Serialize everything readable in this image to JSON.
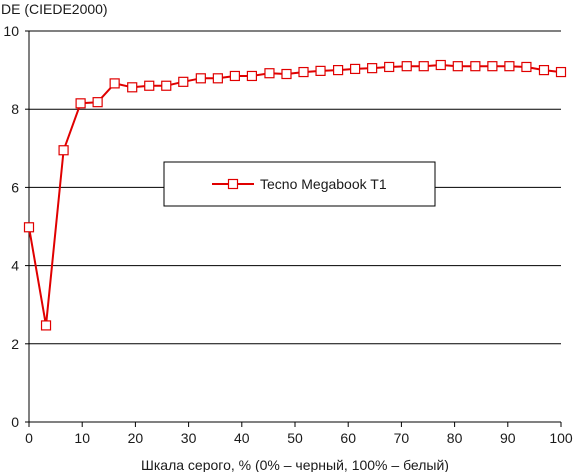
{
  "chart_data": {
    "type": "line",
    "ylabel": "DE (CIEDE2000)",
    "xlabel": "Шкала серого, % (0% – черный, 100% – белый)",
    "xlim": [
      0,
      100
    ],
    "ylim": [
      0,
      10
    ],
    "xticks": [
      "0",
      "10",
      "20",
      "30",
      "40",
      "50",
      "60",
      "70",
      "80",
      "90",
      "100"
    ],
    "yticks": [
      "0",
      "2",
      "4",
      "6",
      "8",
      "10"
    ],
    "grid": "horizontal",
    "legend_position": "center",
    "series": [
      {
        "name": "Tecno Megabook T1",
        "color": "#e00000",
        "marker": "square-hollow",
        "x": [
          0,
          3.2,
          6.5,
          9.7,
          12.9,
          16.1,
          19.4,
          22.6,
          25.8,
          29.0,
          32.3,
          35.5,
          38.7,
          41.9,
          45.2,
          48.4,
          51.6,
          54.8,
          58.1,
          61.3,
          64.5,
          67.7,
          71.0,
          74.2,
          77.4,
          80.6,
          83.9,
          87.1,
          90.3,
          93.5,
          96.8,
          100
        ],
        "y": [
          4.98,
          2.47,
          6.95,
          8.15,
          8.18,
          8.66,
          8.56,
          8.6,
          8.6,
          8.7,
          8.79,
          8.79,
          8.85,
          8.85,
          8.92,
          8.9,
          8.95,
          8.98,
          9.0,
          9.03,
          9.05,
          9.08,
          9.1,
          9.1,
          9.13,
          9.1,
          9.1,
          9.1,
          9.1,
          9.08,
          9.0,
          8.95
        ]
      }
    ]
  }
}
